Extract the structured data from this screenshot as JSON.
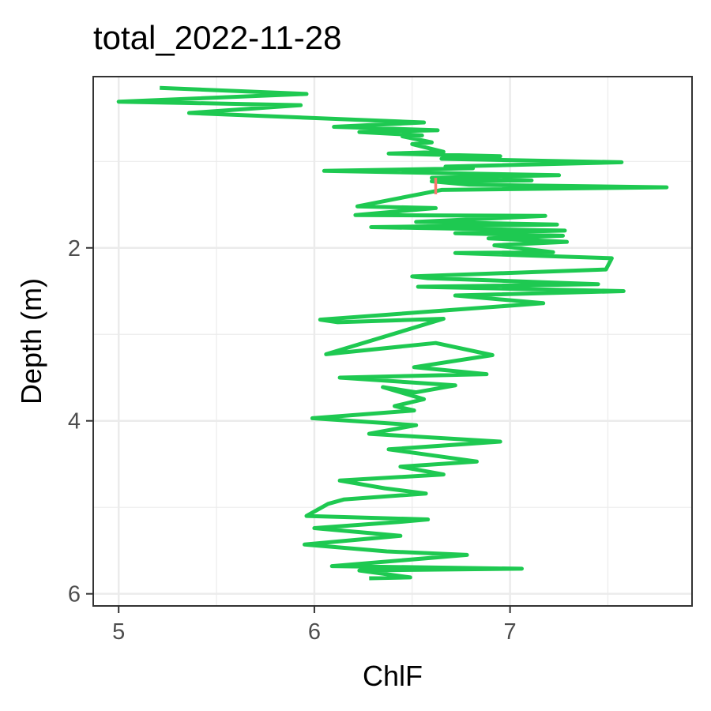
{
  "chart_data": {
    "type": "line",
    "title": "total_2022-11-28",
    "xlabel": "ChlF",
    "ylabel": "Depth (m)",
    "xlim": [
      4.87,
      7.93
    ],
    "ylim": [
      6.14,
      0.02
    ],
    "y_reversed": true,
    "x_ticks": [
      5,
      6,
      7
    ],
    "x_tick_labels": [
      "5",
      "6",
      "7"
    ],
    "y_ticks": [
      2,
      4,
      6
    ],
    "y_tick_labels": [
      "2",
      "4",
      "6"
    ],
    "grid": true,
    "legend": "none",
    "series": [
      {
        "color": "#1ec951",
        "x": [
          5.21,
          5.96,
          5.0,
          5.93,
          5.36,
          6.56,
          6.1,
          6.63,
          6.23,
          6.55,
          6.45,
          6.6,
          6.5,
          6.66,
          6.38,
          6.95,
          6.65,
          7.57,
          6.67,
          6.81,
          6.05,
          7.25,
          6.6,
          7.11,
          6.6,
          6.79,
          7.8,
          6.65,
          6.22,
          6.62,
          6.21,
          7.18,
          6.52,
          7.24,
          6.29,
          7.28,
          6.72,
          7.27,
          6.89,
          7.29,
          6.92,
          7.22,
          6.72,
          7.52,
          7.49,
          6.5,
          6.58,
          7.45,
          6.53,
          7.58,
          6.72,
          7.17,
          6.03,
          6.12,
          6.66,
          6.06,
          6.62,
          6.91,
          6.51,
          6.88,
          6.13,
          6.72,
          6.52,
          6.35,
          6.56,
          6.41,
          6.51,
          5.99,
          6.52,
          6.28,
          6.95,
          6.38,
          6.83,
          6.44,
          6.66,
          6.13,
          6.36,
          6.57,
          6.15,
          6.07,
          5.96,
          6.58,
          6.43,
          6.0,
          6.44,
          5.95,
          6.37,
          6.78,
          6.09,
          7.06,
          6.23,
          6.49,
          6.28
        ],
        "y": [
          0.15,
          0.22,
          0.31,
          0.35,
          0.44,
          0.55,
          0.6,
          0.64,
          0.66,
          0.7,
          0.71,
          0.78,
          0.8,
          0.89,
          0.91,
          0.94,
          0.97,
          1.01,
          1.06,
          1.08,
          1.11,
          1.16,
          1.19,
          1.22,
          1.23,
          1.27,
          1.3,
          1.33,
          1.52,
          1.54,
          1.62,
          1.63,
          1.7,
          1.73,
          1.76,
          1.8,
          1.83,
          1.86,
          1.89,
          1.93,
          1.97,
          2.05,
          2.06,
          2.12,
          2.25,
          2.33,
          2.35,
          2.42,
          2.45,
          2.5,
          2.55,
          2.64,
          2.83,
          2.86,
          2.82,
          3.23,
          3.1,
          3.24,
          3.38,
          3.46,
          3.5,
          3.59,
          3.67,
          3.61,
          3.75,
          3.83,
          3.88,
          3.97,
          4.05,
          4.15,
          4.24,
          4.33,
          4.47,
          4.53,
          4.62,
          4.69,
          4.78,
          4.84,
          4.91,
          4.96,
          5.1,
          5.14,
          5.17,
          5.24,
          5.33,
          5.43,
          5.51,
          5.55,
          5.68,
          5.71,
          5.73,
          5.81,
          5.82
        ]
      },
      {
        "color": "#f8766d",
        "x": [
          6.62,
          6.62
        ],
        "y": [
          1.19,
          1.38
        ]
      }
    ]
  }
}
